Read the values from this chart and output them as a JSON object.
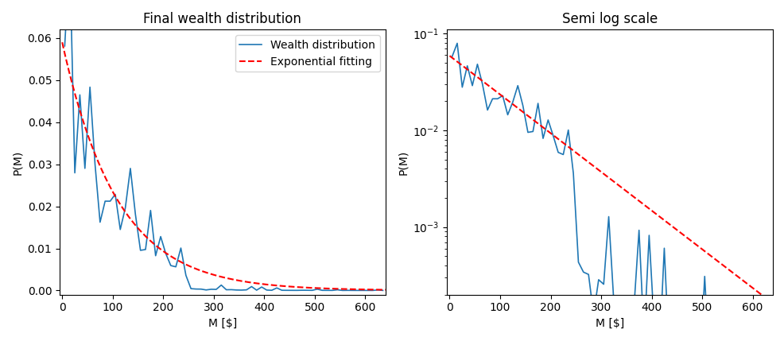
{
  "title_left": "Final wealth distribution",
  "title_right": "Semi log scale",
  "xlabel": "M [$]",
  "ylabel": "P(M)",
  "a": -0.00921,
  "amplitude": 0.059,
  "x_max": 640,
  "xlim_left": [
    -5,
    640
  ],
  "xlim_right": [
    -5,
    640
  ],
  "ylim_left": [
    -0.001,
    0.062
  ],
  "ylim_right": [
    0.0002,
    0.11
  ],
  "legend_labels": [
    "Wealth distribution",
    "Exponential fitting"
  ],
  "line_color": "#1f77b4",
  "fit_color": "red",
  "figsize": [
    9.87,
    4.29
  ],
  "dpi": 100
}
